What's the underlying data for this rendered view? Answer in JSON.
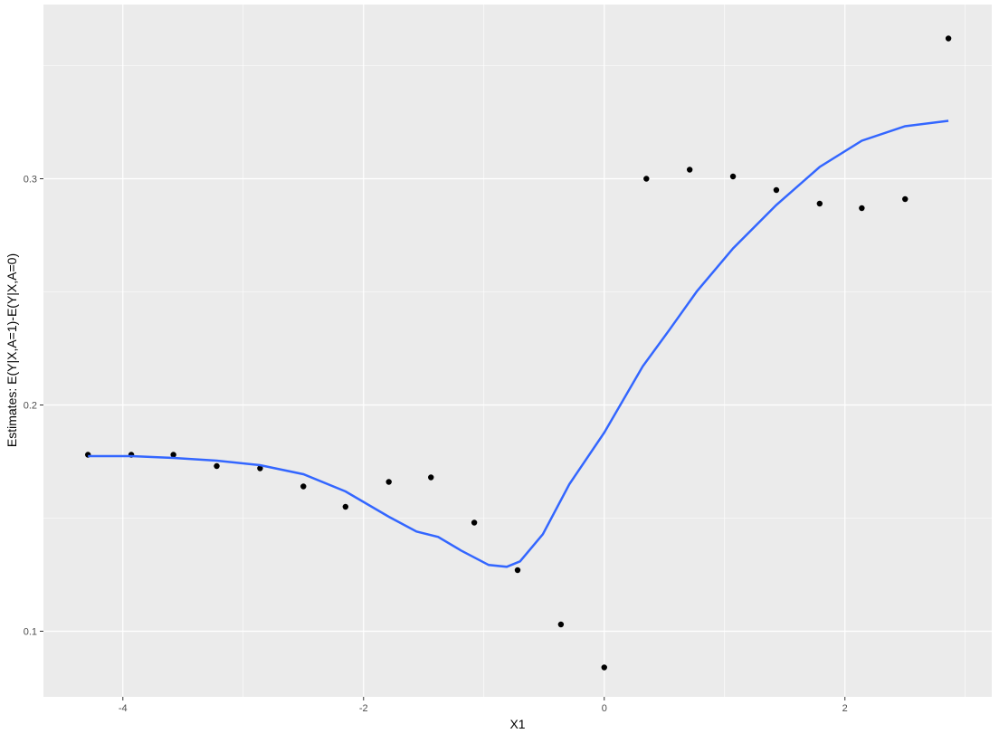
{
  "chart_data": {
    "type": "scatter",
    "title": "",
    "xlabel": "X1",
    "ylabel": "Estimates: E(Y|X,A=1)-E(Y|X,A=0)",
    "xlim": [
      -4.66,
      3.22
    ],
    "ylim": [
      0.071,
      0.377
    ],
    "x_ticks": [
      -4,
      -2,
      0,
      2
    ],
    "x_tick_labels": [
      "-4",
      "-2",
      "0",
      "2"
    ],
    "y_ticks": [
      0.1,
      0.2,
      0.3
    ],
    "y_tick_labels": [
      "0.1",
      "0.2",
      "0.3"
    ],
    "grid": true,
    "background": "#EBEBEB",
    "point_color": "#000000",
    "line_color": "#3366FF",
    "points": {
      "x": [
        -4.29,
        -3.93,
        -3.58,
        -3.22,
        -2.86,
        -2.5,
        -2.15,
        -1.79,
        -1.44,
        -1.08,
        -0.72,
        -0.36,
        0.0,
        0.35,
        0.71,
        1.07,
        1.43,
        1.79,
        2.14,
        2.5,
        2.86
      ],
      "y": [
        0.178,
        0.178,
        0.178,
        0.173,
        0.172,
        0.164,
        0.155,
        0.166,
        0.168,
        0.148,
        0.127,
        0.103,
        0.084,
        0.3,
        0.304,
        0.301,
        0.295,
        0.289,
        0.287,
        0.291,
        0.362
      ]
    },
    "smooth": {
      "x": [
        -4.29,
        -3.93,
        -3.58,
        -3.22,
        -2.86,
        -2.5,
        -2.15,
        -1.79,
        -1.56,
        -1.38,
        -1.19,
        -0.96,
        -0.81,
        -0.7,
        -0.51,
        -0.29,
        0.0,
        0.32,
        0.54,
        0.77,
        1.07,
        1.43,
        1.79,
        2.14,
        2.5,
        2.86
      ],
      "y": [
        0.1774,
        0.1774,
        0.1766,
        0.1754,
        0.1734,
        0.1694,
        0.1618,
        0.1506,
        0.1441,
        0.1417,
        0.1357,
        0.1293,
        0.1285,
        0.1309,
        0.1429,
        0.165,
        0.1878,
        0.2171,
        0.2331,
        0.2503,
        0.2692,
        0.2884,
        0.3052,
        0.3168,
        0.3232,
        0.3256
      ]
    }
  }
}
